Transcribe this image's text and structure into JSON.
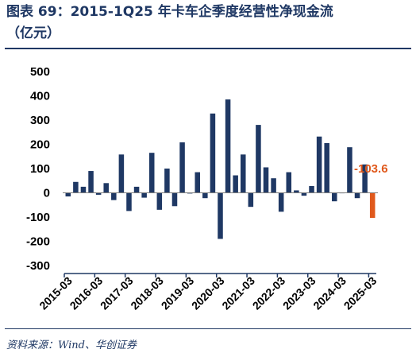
{
  "header": {
    "title_line1": "图表 69：2015-1Q25 年卡车企季度经营性净现金流",
    "title_line2": "（亿元）"
  },
  "footer": {
    "source": "资料来源：Wind、华创证券"
  },
  "colors": {
    "bar": "#1f3864",
    "highlight": "#e0591c",
    "axis": "#1f3864",
    "title": "#1f3864"
  },
  "chart_data": {
    "type": "bar",
    "title": "",
    "xlabel": "",
    "ylabel": "",
    "ylim": [
      -300,
      500
    ],
    "yticks": [
      -300,
      -200,
      -100,
      0,
      100,
      200,
      300,
      400,
      500
    ],
    "grid": false,
    "legend": "none",
    "x_tick_labels": [
      "2015-03",
      "2016-03",
      "2017-03",
      "2018-03",
      "2019-03",
      "2020-03",
      "2021-03",
      "2022-03",
      "2023-03",
      "2024-03",
      "2025-03"
    ],
    "categories": [
      "2015Q1",
      "2015Q2",
      "2015Q3",
      "2015Q4",
      "2016Q1",
      "2016Q2",
      "2016Q3",
      "2016Q4",
      "2017Q1",
      "2017Q2",
      "2017Q3",
      "2017Q4",
      "2018Q1",
      "2018Q2",
      "2018Q3",
      "2018Q4",
      "2019Q1",
      "2019Q2",
      "2019Q3",
      "2019Q4",
      "2020Q1",
      "2020Q2",
      "2020Q3",
      "2020Q4",
      "2021Q1",
      "2021Q2",
      "2021Q3",
      "2021Q4",
      "2022Q1",
      "2022Q2",
      "2022Q3",
      "2022Q4",
      "2023Q1",
      "2023Q2",
      "2023Q3",
      "2023Q4",
      "2024Q1",
      "2024Q2",
      "2024Q3",
      "2024Q4",
      "2025Q1"
    ],
    "values": [
      -15,
      45,
      25,
      90,
      -8,
      40,
      -30,
      158,
      -75,
      25,
      -20,
      165,
      -70,
      100,
      -55,
      208,
      -3,
      85,
      -22,
      327,
      -190,
      385,
      72,
      158,
      -58,
      280,
      105,
      60,
      -78,
      85,
      10,
      -12,
      28,
      232,
      205,
      -35,
      0,
      188,
      -22,
      117,
      -103.6
    ],
    "highlight_index": 40,
    "annotation": {
      "text": "-103.6",
      "index": 40
    }
  }
}
